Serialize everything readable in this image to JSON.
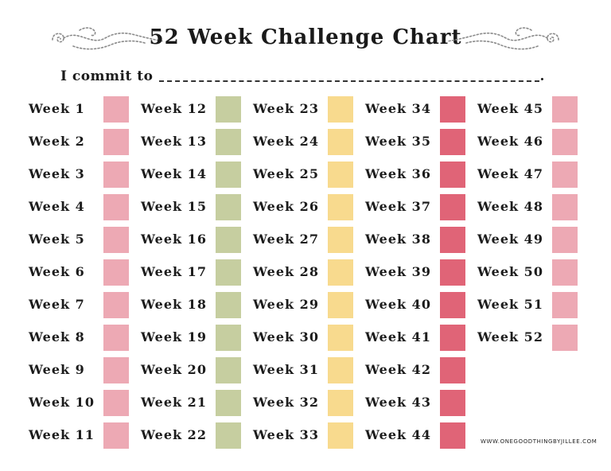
{
  "title": "52 Week Challenge Chart",
  "commit": {
    "label": "I commit to",
    "end": "."
  },
  "footer": "WWW.ONEGOODTHINGBYJILLEE.COM",
  "colors": {
    "pink": "#eda9b4",
    "green": "#c6cea0",
    "yellow": "#f8da8e",
    "red": "#e06477"
  },
  "columns": [
    {
      "color": "pink",
      "weeks": [
        "Week 1",
        "Week 2",
        "Week 3",
        "Week 4",
        "Week 5",
        "Week 6",
        "Week 7",
        "Week 8",
        "Week 9",
        "Week 10",
        "Week 11"
      ]
    },
    {
      "color": "green",
      "weeks": [
        "Week 12",
        "Week 13",
        "Week 14",
        "Week 15",
        "Week 16",
        "Week 17",
        "Week 18",
        "Week 19",
        "Week 20",
        "Week 21",
        "Week 22"
      ]
    },
    {
      "color": "yellow",
      "weeks": [
        "Week 23",
        "Week 24",
        "Week 25",
        "Week 26",
        "Week 27",
        "Week 28",
        "Week 29",
        "Week 30",
        "Week 31",
        "Week 32",
        "Week 33"
      ]
    },
    {
      "color": "red",
      "weeks": [
        "Week 34",
        "Week 35",
        "Week 36",
        "Week 37",
        "Week 38",
        "Week 39",
        "Week 40",
        "Week 41",
        "Week 42",
        "Week 43",
        "Week 44"
      ]
    },
    {
      "color": "pink",
      "weeks": [
        "Week 45",
        "Week 46",
        "Week 47",
        "Week 48",
        "Week 49",
        "Week 50",
        "Week 51",
        "Week 52"
      ]
    }
  ]
}
